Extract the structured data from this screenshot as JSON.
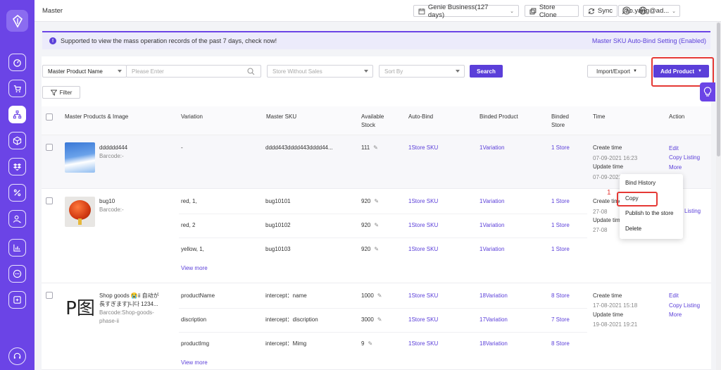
{
  "app": {
    "title": "Master"
  },
  "topbar": {
    "shop": "Genie Business(127 days)",
    "store_clone": "Store Clone",
    "sync": "Sync",
    "user": "jiao.yang@ad..."
  },
  "notice": {
    "text": "Supported to view the mass operation records of the past 7 days, check now!",
    "link": "Master SKU Auto-Bind Setting (Enabled)"
  },
  "filters": {
    "field": "Master Product Name",
    "search_placeholder": "Please Enter",
    "sales_filter": "Store Without Sales",
    "sort": "Sort By",
    "search": "Search",
    "import_export": "Import/Export",
    "add_product": "Add Product",
    "filter": "Filter"
  },
  "table": {
    "headers": {
      "product": "Master Products & Image",
      "variation": "Variation",
      "sku": "Master SKU",
      "stock_1": "Available",
      "stock_2": "Stock",
      "autobind": "Auto-Bind",
      "binded": "Binded Product",
      "store_1": "Binded",
      "store_2": "Store",
      "time": "Time",
      "action": "Action"
    },
    "rows": [
      {
        "name": "dddddd444",
        "barcode": "Barcode:-",
        "variation": "-",
        "sku": "dddd443dddd443dddd44...",
        "stock": "111",
        "autobind": "1Store SKU",
        "binded": "1Variation",
        "store": "1 Store",
        "created_label": "Create time",
        "created": "07-09-2021 16:23",
        "updated_label": "Update time",
        "updated": "07-09-2021",
        "edit": "Edit",
        "copy_listing": "Copy Listing",
        "more": "More"
      },
      {
        "name": "bug10",
        "barcode": "Barcode:-",
        "variants": [
          {
            "variation": "red, 1,",
            "sku": "bug10101",
            "stock": "920",
            "autobind": "1Store SKU",
            "binded": "1Variation",
            "store": "1 Store"
          },
          {
            "variation": "red, 2",
            "sku": "bug10102",
            "stock": "920",
            "autobind": "1Store SKU",
            "binded": "1Variation",
            "store": "1 Store"
          },
          {
            "variation": "yellow, 1,",
            "sku": "bug10103",
            "stock": "920",
            "autobind": "1Store SKU",
            "binded": "1Variation",
            "store": "1 Store"
          }
        ],
        "view_more": "View more",
        "created_label": "Create time",
        "created": "27-08",
        "updated_label": "Update time",
        "updated": "27-08",
        "copy_listing": "Listing"
      },
      {
        "name_1": "Shop goods 😭ii 自动が",
        "name_2": "長すぎます]니다 1234...",
        "barcode_1": "Barcode:Shop-goods-",
        "barcode_2": "phase-ii",
        "thumb_text": "P图",
        "variants": [
          {
            "variation": "productName",
            "sku": "intercept：name",
            "stock": "1000",
            "autobind": "1Store SKU",
            "binded": "18Variation",
            "store": "8 Store"
          },
          {
            "variation": "discription",
            "sku": "intercept：discription",
            "stock": "3000",
            "autobind": "1Store SKU",
            "binded": "17Variation",
            "store": "7 Store"
          },
          {
            "variation": "productImg",
            "sku": "intercept：Mimg",
            "stock": "9",
            "autobind": "1Store SKU",
            "binded": "18Variation",
            "store": "8 Store"
          }
        ],
        "view_more": "View more",
        "created_label": "Create time",
        "created": "17-08-2021 15:18",
        "updated_label": "Update time",
        "updated": "19-08-2021 19:21",
        "edit": "Edit",
        "copy_listing": "Copy Listing",
        "more": "More"
      }
    ]
  },
  "menu": {
    "items": [
      "Bind History",
      "Copy",
      "Publish to the store",
      "Delete"
    ]
  },
  "annotation": {
    "step": "1"
  },
  "colors": {
    "accent": "#5b3fd9",
    "sidebar": "#6b44e6",
    "highlight": "#e53935"
  },
  "icons": [
    "logo-icon",
    "dashboard-icon",
    "cart-icon",
    "network-icon",
    "box-icon",
    "dropbox-icon",
    "percent-icon",
    "users-icon",
    "chart-icon",
    "chat-icon",
    "export-icon",
    "support-icon",
    "calendar-icon",
    "search-icon",
    "filter-icon",
    "bulb-icon",
    "pencil-icon",
    "help-icon",
    "globe-icon",
    "sync-icon",
    "clone-icon"
  ]
}
